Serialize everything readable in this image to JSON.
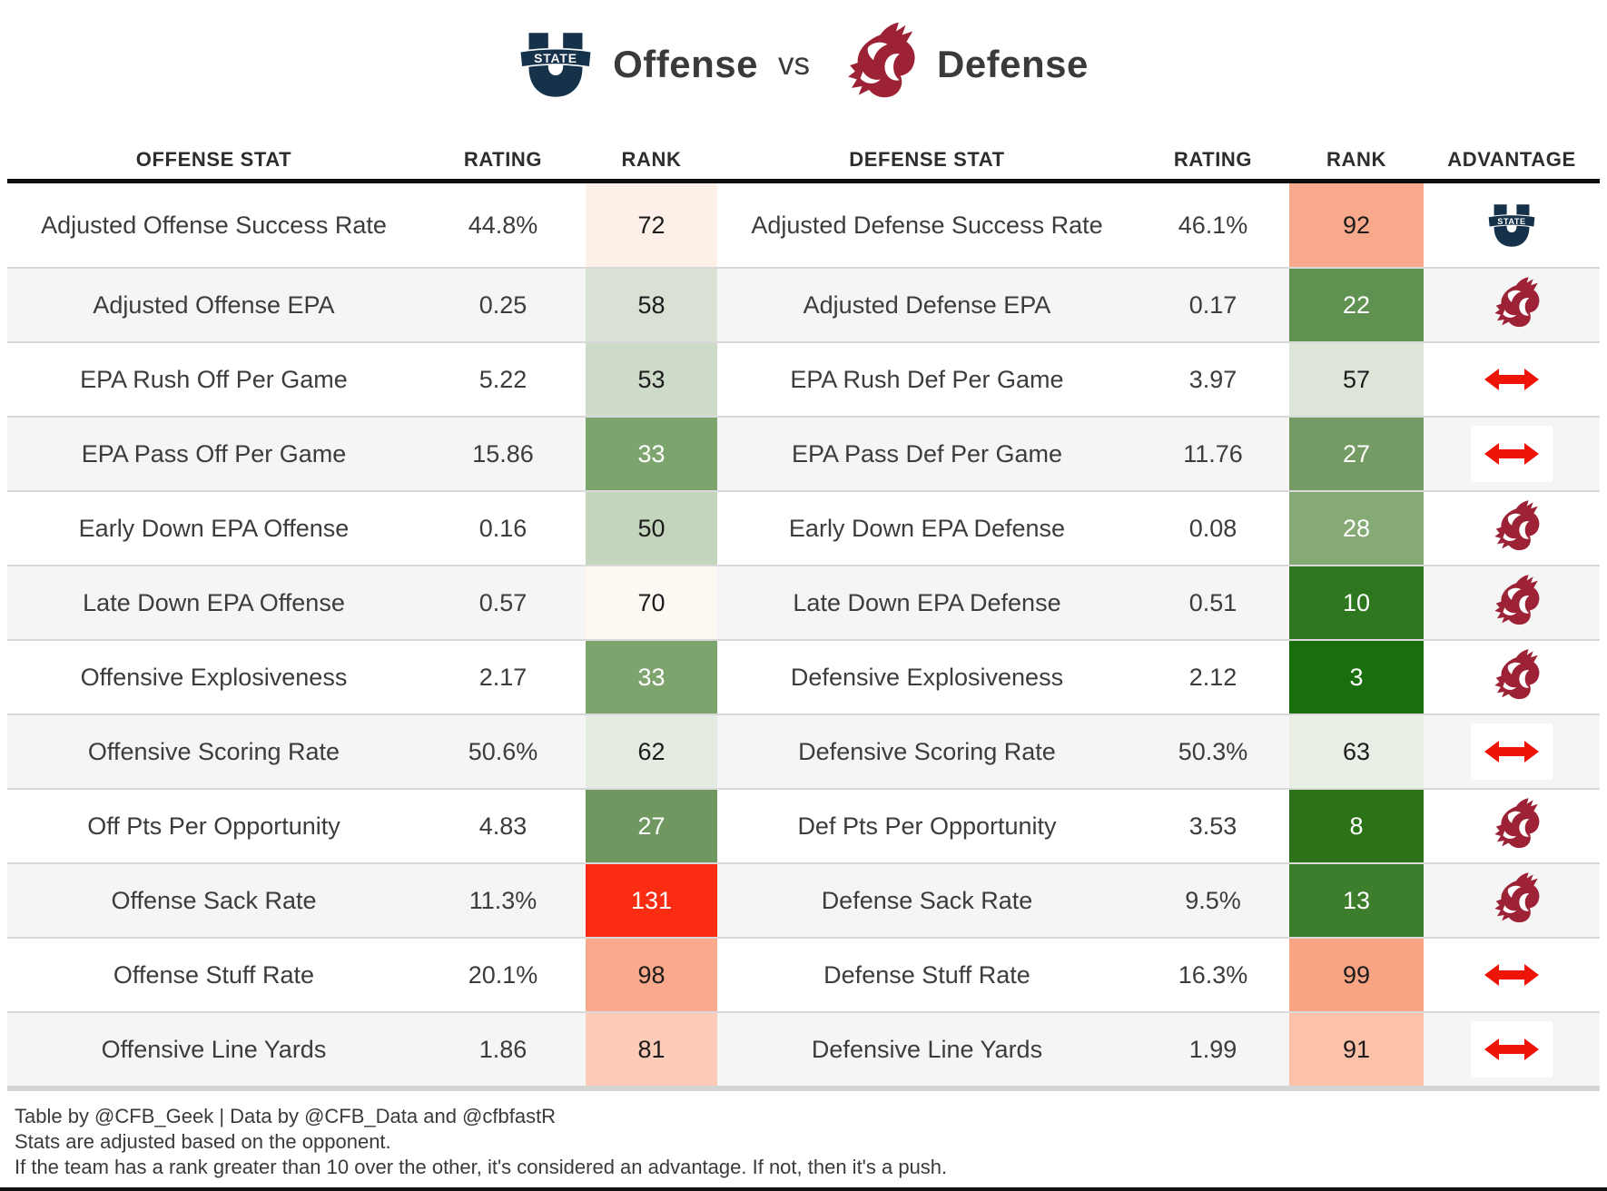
{
  "title": {
    "offense_label": "Offense",
    "vs_label": "vs",
    "defense_label": "Defense",
    "left_team": "Utah State",
    "right_team": "Washington State"
  },
  "colors": {
    "usu_navy": "#16324b",
    "wsu_crimson": "#9d2235",
    "push_red": "#ee1408",
    "worst_red": "#fa2d13",
    "header_rule": "#0d0d0d"
  },
  "table": {
    "headers": {
      "offense_stat": "OFFENSE STAT",
      "offense_rating": "RATING",
      "offense_rank": "RANK",
      "defense_stat": "DEFENSE STAT",
      "defense_rating": "RATING",
      "defense_rank": "RANK",
      "advantage": "ADVANTAGE"
    },
    "rows": [
      {
        "offense_stat": "Adjusted Offense Success Rate",
        "offense_rating": "44.8%",
        "offense_rank": "72",
        "offense_rank_bg": "#fdf0e8",
        "offense_rank_fg": "#1c1c1c",
        "defense_stat": "Adjusted Defense Success Rate",
        "defense_rating": "46.1%",
        "defense_rank": "92",
        "defense_rank_bg": "#f9a98b",
        "defense_rank_fg": "#1c1c1c",
        "advantage": "usu"
      },
      {
        "offense_stat": "Adjusted Offense EPA",
        "offense_rating": "0.25",
        "offense_rank": "58",
        "offense_rank_bg": "#d8e1d3",
        "offense_rank_fg": "#1c1c1c",
        "defense_stat": "Adjusted Defense EPA",
        "defense_rating": "0.17",
        "defense_rank": "22",
        "defense_rank_bg": "#5f9150",
        "defense_rank_fg": "#ffffff",
        "advantage": "wsu"
      },
      {
        "offense_stat": "EPA Rush Off Per Game",
        "offense_rating": "5.22",
        "offense_rank": "53",
        "offense_rank_bg": "#cedbc9",
        "offense_rank_fg": "#1c1c1c",
        "defense_stat": "EPA Rush Def Per Game",
        "defense_rating": "3.97",
        "defense_rank": "57",
        "defense_rank_bg": "#dce5d7",
        "defense_rank_fg": "#1c1c1c",
        "advantage": "push"
      },
      {
        "offense_stat": "EPA Pass Off Per Game",
        "offense_rating": "15.86",
        "offense_rank": "33",
        "offense_rank_bg": "#7ea46d",
        "offense_rank_fg": "#ffffff",
        "defense_stat": "EPA Pass Def Per Game",
        "defense_rating": "11.76",
        "defense_rank": "27",
        "defense_rank_bg": "#739b63",
        "defense_rank_fg": "#ffffff",
        "advantage": "push"
      },
      {
        "offense_stat": "Early Down EPA Offense",
        "offense_rating": "0.16",
        "offense_rank": "50",
        "offense_rank_bg": "#c3d5bc",
        "offense_rank_fg": "#1c1c1c",
        "defense_stat": "Early Down EPA Defense",
        "defense_rating": "0.08",
        "defense_rank": "28",
        "defense_rank_bg": "#85aa76",
        "defense_rank_fg": "#ffffff",
        "advantage": "wsu"
      },
      {
        "offense_stat": "Late Down EPA Offense",
        "offense_rating": "0.57",
        "offense_rank": "70",
        "offense_rank_bg": "#fdf8f2",
        "offense_rank_fg": "#1c1c1c",
        "defense_stat": "Late Down EPA Defense",
        "defense_rating": "0.51",
        "defense_rank": "10",
        "defense_rank_bg": "#2f771e",
        "defense_rank_fg": "#ffffff",
        "advantage": "wsu"
      },
      {
        "offense_stat": "Offensive Explosiveness",
        "offense_rating": "2.17",
        "offense_rank": "33",
        "offense_rank_bg": "#7ea46d",
        "offense_rank_fg": "#ffffff",
        "defense_stat": "Defensive Explosiveness",
        "defense_rating": "2.12",
        "defense_rank": "3",
        "defense_rank_bg": "#1b6e0e",
        "defense_rank_fg": "#ffffff",
        "advantage": "wsu"
      },
      {
        "offense_stat": "Offensive Scoring Rate",
        "offense_rating": "50.6%",
        "offense_rank": "62",
        "offense_rank_bg": "#e4ebe0",
        "offense_rank_fg": "#1c1c1c",
        "defense_stat": "Defensive Scoring Rate",
        "defense_rating": "50.3%",
        "defense_rank": "63",
        "defense_rank_bg": "#e9efe5",
        "defense_rank_fg": "#1c1c1c",
        "advantage": "push"
      },
      {
        "offense_stat": "Off Pts Per Opportunity",
        "offense_rating": "4.83",
        "offense_rank": "27",
        "offense_rank_bg": "#70975f",
        "offense_rank_fg": "#ffffff",
        "defense_stat": "Def Pts Per Opportunity",
        "defense_rating": "3.53",
        "defense_rank": "8",
        "defense_rank_bg": "#2b7219",
        "defense_rank_fg": "#ffffff",
        "advantage": "wsu"
      },
      {
        "offense_stat": "Offense Sack Rate",
        "offense_rating": "11.3%",
        "offense_rank": "131",
        "offense_rank_bg": "#fa2d13",
        "offense_rank_fg": "#ffffff",
        "defense_stat": "Defense Sack Rate",
        "defense_rating": "9.5%",
        "defense_rank": "13",
        "defense_rank_bg": "#3d7e2d",
        "defense_rank_fg": "#ffffff",
        "advantage": "wsu"
      },
      {
        "offense_stat": "Offense Stuff Rate",
        "offense_rating": "20.1%",
        "offense_rank": "98",
        "offense_rank_bg": "#fba98c",
        "offense_rank_fg": "#1c1c1c",
        "defense_stat": "Defense Stuff Rate",
        "defense_rating": "16.3%",
        "defense_rank": "99",
        "defense_rank_bg": "#f9a583",
        "defense_rank_fg": "#1c1c1c",
        "advantage": "push"
      },
      {
        "offense_stat": "Offensive Line Yards",
        "offense_rating": "1.86",
        "offense_rank": "81",
        "offense_rank_bg": "#fcccb8",
        "offense_rank_fg": "#1c1c1c",
        "defense_stat": "Defensive Line Yards",
        "defense_rating": "1.99",
        "defense_rank": "91",
        "defense_rank_bg": "#fbc1a9",
        "defense_rank_fg": "#1c1c1c",
        "advantage": "push"
      }
    ]
  },
  "footer": {
    "line1": "Table by @CFB_Geek | Data by @CFB_Data and @cfbfastR",
    "line2": "Stats are adjusted based on the opponent.",
    "line3": "If the team has a rank greater than 10 over the other, it's considered an advantage. If not, then it's a push."
  },
  "chart_data": {
    "type": "table",
    "title": "Utah State Offense vs Washington State Defense",
    "columns": [
      "OFFENSE STAT",
      "RATING",
      "RANK",
      "DEFENSE STAT",
      "RATING",
      "RANK",
      "ADVANTAGE"
    ],
    "rows": [
      [
        "Adjusted Offense Success Rate",
        "44.8%",
        72,
        "Adjusted Defense Success Rate",
        "46.1%",
        92,
        "Utah State"
      ],
      [
        "Adjusted Offense EPA",
        "0.25",
        58,
        "Adjusted Defense EPA",
        "0.17",
        22,
        "Washington State"
      ],
      [
        "EPA Rush Off Per Game",
        "5.22",
        53,
        "EPA Rush Def Per Game",
        "3.97",
        57,
        "Push"
      ],
      [
        "EPA Pass Off Per Game",
        "15.86",
        33,
        "EPA Pass Def Per Game",
        "11.76",
        27,
        "Push"
      ],
      [
        "Early Down EPA Offense",
        "0.16",
        50,
        "Early Down EPA Defense",
        "0.08",
        28,
        "Washington State"
      ],
      [
        "Late Down EPA Offense",
        "0.57",
        70,
        "Late Down EPA Defense",
        "0.51",
        10,
        "Washington State"
      ],
      [
        "Offensive Explosiveness",
        "2.17",
        33,
        "Defensive Explosiveness",
        "2.12",
        3,
        "Washington State"
      ],
      [
        "Offensive Scoring Rate",
        "50.6%",
        62,
        "Defensive Scoring Rate",
        "50.3%",
        63,
        "Push"
      ],
      [
        "Off Pts Per Opportunity",
        "4.83",
        27,
        "Def Pts Per Opportunity",
        "3.53",
        8,
        "Washington State"
      ],
      [
        "Offense Sack Rate",
        "11.3%",
        131,
        "Defense Sack Rate",
        "9.5%",
        13,
        "Washington State"
      ],
      [
        "Offense Stuff Rate",
        "20.1%",
        98,
        "Defense Stuff Rate",
        "16.3%",
        99,
        "Push"
      ],
      [
        "Offensive Line Yards",
        "1.86",
        81,
        "Defensive Line Yards",
        "1.99",
        91,
        "Push"
      ]
    ]
  }
}
